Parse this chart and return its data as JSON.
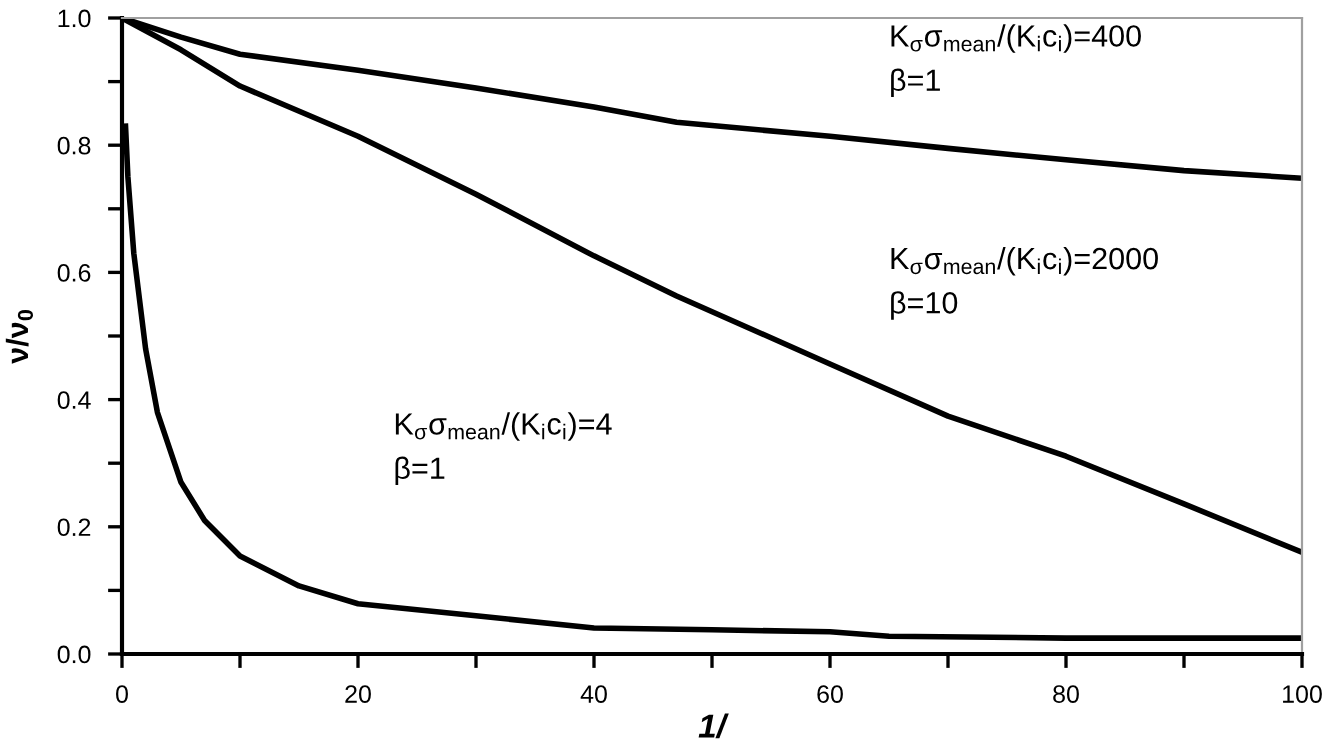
{
  "chart_data": {
    "type": "line",
    "xlabel": "1/",
    "ylabel": "ν/ν$_{0}$",
    "xlim": [
      0,
      100
    ],
    "ylim": [
      0,
      1.0
    ],
    "xticks": [
      0,
      {
        "value": 10,
        "label": null
      },
      20,
      {
        "value": 30,
        "label": null
      },
      40,
      {
        "value": 50,
        "label": null
      },
      60,
      {
        "value": 70,
        "label": null
      },
      80,
      {
        "value": 90,
        "label": null
      },
      100
    ],
    "yticks": [
      {
        "value": 0,
        "label": "0.0"
      },
      {
        "value": 0.1,
        "label": null
      },
      {
        "value": 0.2,
        "label": "0.2"
      },
      {
        "value": 0.3,
        "label": null
      },
      {
        "value": 0.4,
        "label": "0.4"
      },
      {
        "value": 0.5,
        "label": null
      },
      {
        "value": 0.6,
        "label": "0.6"
      },
      {
        "value": 0.7,
        "label": null
      },
      {
        "value": 0.8,
        "label": "0.8"
      },
      {
        "value": 0.9,
        "label": null
      },
      {
        "value": 1.0,
        "label": "1.0"
      }
    ],
    "grid": false,
    "legend": false,
    "marker": "none",
    "line_style": "solid",
    "series": [
      {
        "name": "K$_{σ}$σ$_{mean}$/(K$_{i}$c$_{i}$)=400\nβ=1",
        "color": "#000000",
        "x": [
          0,
          5,
          10,
          20,
          30,
          40,
          47,
          60,
          70,
          80,
          90,
          100
        ],
        "values": [
          1.0,
          0.97,
          0.943,
          0.918,
          0.89,
          0.86,
          0.836,
          0.814,
          0.795,
          0.777,
          0.76,
          0.748
        ]
      },
      {
        "name": "K$_{σ}$σ$_{mean}$/(K$_{i}$c$_{i}$)=2000\nβ=10",
        "color": "#000000",
        "x": [
          0,
          5,
          10,
          20,
          30,
          40,
          47,
          60,
          70,
          80,
          90,
          100
        ],
        "values": [
          1.0,
          0.95,
          0.893,
          0.814,
          0.723,
          0.626,
          0.563,
          0.456,
          0.374,
          0.311,
          0.236,
          0.16
        ]
      },
      {
        "name": "K$_{σ}$σ$_{mean}$/(K$_{i}$c$_{i}$)=4\nβ=1",
        "color": "#000000",
        "x": [
          0.3,
          0.5,
          1,
          2,
          3,
          5,
          7,
          10,
          15,
          20,
          30,
          40,
          50,
          60,
          65,
          80,
          100
        ],
        "values": [
          0.83,
          0.75,
          0.63,
          0.48,
          0.38,
          0.27,
          0.21,
          0.154,
          0.107,
          0.079,
          0.06,
          0.041,
          0.038,
          0.035,
          0.028,
          0.025,
          0.025
        ]
      }
    ]
  }
}
